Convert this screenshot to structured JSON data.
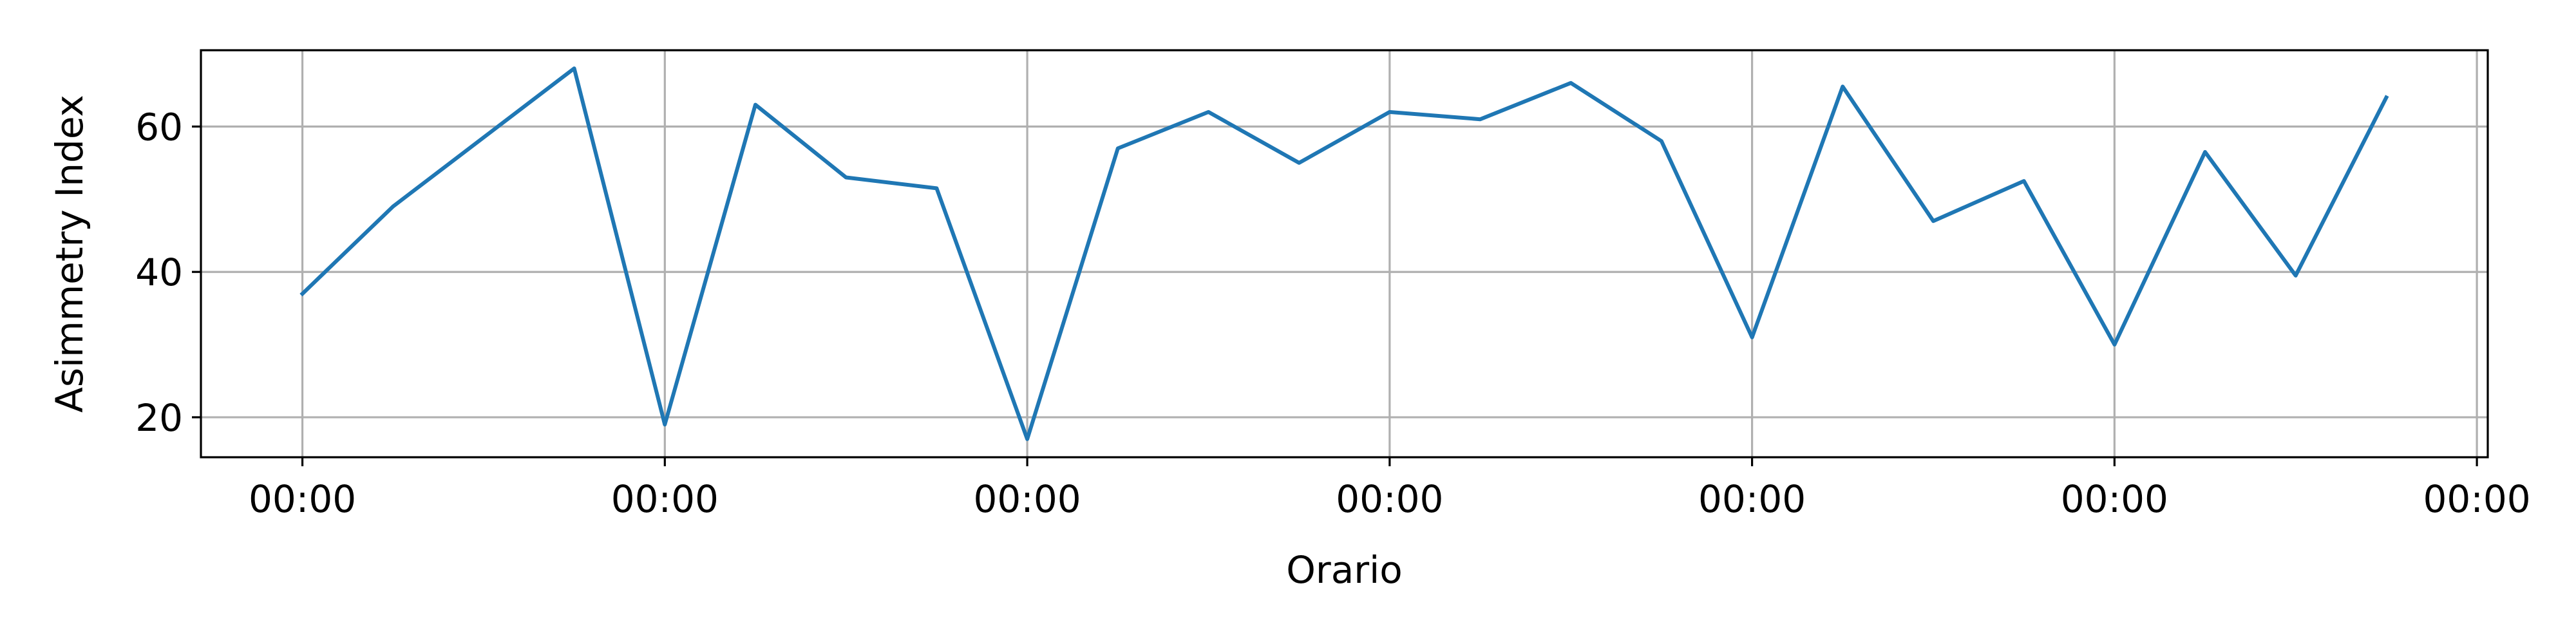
{
  "chart_data": {
    "type": "line",
    "title": "",
    "xlabel": "Orario",
    "ylabel": "Asimmetry Index",
    "x_tick_labels": [
      "00:00",
      "00:00",
      "00:00",
      "00:00",
      "00:00",
      "00:00",
      "00:00"
    ],
    "y_ticks": [
      20,
      40,
      60
    ],
    "y_tick_labels": [
      "20",
      "40",
      "60"
    ],
    "xlim": [
      -0.28,
      6.03
    ],
    "ylim": [
      14.5,
      70.5
    ],
    "grid": true,
    "line_color": "#1f77b4",
    "series": [
      {
        "x": [
          0,
          0.25,
          0.5,
          0.75,
          1,
          1.25,
          1.5,
          1.75,
          2,
          2.25,
          2.5,
          2.75,
          3,
          3.25,
          3.5,
          3.75,
          4,
          4.25,
          4.5,
          4.75,
          5,
          5.25,
          5.5,
          5.75
        ],
        "values": [
          37,
          49,
          58.5,
          68,
          19,
          63,
          53,
          51.5,
          17,
          57,
          62,
          55,
          62,
          61,
          66,
          58,
          31,
          65.5,
          47,
          52.5,
          30,
          56.5,
          39.5,
          64
        ]
      }
    ]
  }
}
